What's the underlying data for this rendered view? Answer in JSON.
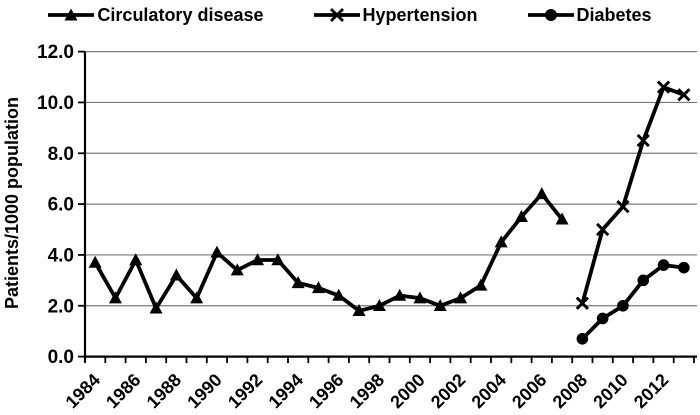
{
  "chart_data": {
    "type": "line",
    "title": "",
    "xlabel": "",
    "ylabel": "Patients/1000 population",
    "ylim": [
      0,
      12
    ],
    "ytick_step": 2,
    "ytick_labels": [
      "0.0",
      "2.0",
      "4.0",
      "6.0",
      "8.0",
      "10.0",
      "12.0"
    ],
    "x_start": 1984,
    "x_end": 2013,
    "xtick_labels": [
      "1984",
      "1986",
      "1988",
      "1990",
      "1992",
      "1994",
      "1996",
      "1998",
      "2000",
      "2002",
      "2004",
      "2006",
      "2008",
      "2010",
      "2012"
    ],
    "grid": "horizontal",
    "legend_position": "top",
    "series": [
      {
        "name": "Circulatory disease",
        "marker": "triangle",
        "x": [
          1984,
          1985,
          1986,
          1987,
          1988,
          1989,
          1990,
          1991,
          1992,
          1993,
          1994,
          1995,
          1996,
          1997,
          1998,
          1999,
          2000,
          2001,
          2002,
          2003,
          2004,
          2005,
          2006,
          2007
        ],
        "values": [
          3.7,
          2.3,
          3.8,
          1.9,
          3.2,
          2.3,
          4.1,
          3.4,
          3.8,
          3.8,
          2.9,
          2.7,
          2.4,
          1.8,
          2.0,
          2.4,
          2.3,
          2.0,
          2.3,
          2.8,
          4.5,
          5.5,
          6.4,
          5.4
        ]
      },
      {
        "name": "Hypertension",
        "marker": "x",
        "x": [
          2008,
          2009,
          2010,
          2011,
          2012,
          2013
        ],
        "values": [
          2.1,
          5.0,
          5.9,
          8.5,
          10.6,
          10.3
        ]
      },
      {
        "name": "Diabetes",
        "marker": "circle",
        "x": [
          2008,
          2009,
          2010,
          2011,
          2012,
          2013
        ],
        "values": [
          0.7,
          1.5,
          2.0,
          3.0,
          3.6,
          3.5
        ]
      }
    ],
    "colors": {
      "line": "#000000",
      "grid": "#7a7a7a",
      "text": "#000000",
      "background": "#ffffff"
    }
  }
}
